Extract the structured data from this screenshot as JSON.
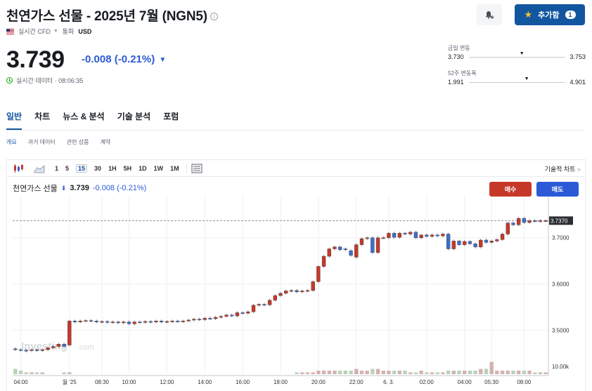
{
  "header": {
    "title": "천연가스 선물 - 2025년 7월 (NGN5)",
    "info_icon": "info-icon",
    "data_type": "실시간 CFD",
    "currency_label": "통화",
    "currency": "USD",
    "add_button_label": "추가함",
    "add_button_count": "1"
  },
  "quote": {
    "price": "3.739",
    "change": "-0.008",
    "change_pct": "(-0.21%)",
    "realtime_text": "실시간 데이터 · 08:06:35",
    "colors": {
      "down": "#2c5ad7",
      "up": "#c7382a",
      "brand": "#1256a0"
    }
  },
  "ranges": {
    "day": {
      "label": "금일 변동",
      "low": "3.730",
      "high": "3.753",
      "marker": 0.55
    },
    "week52": {
      "label": "52주 변동폭",
      "low": "1.991",
      "high": "4.901",
      "marker": 0.6
    }
  },
  "tabs": [
    {
      "label": "일반",
      "active": true
    },
    {
      "label": "차트"
    },
    {
      "label": "뉴스 & 분석"
    },
    {
      "label": "기술 분석"
    },
    {
      "label": "포럼"
    }
  ],
  "subtabs": [
    {
      "label": "개요",
      "active": true
    },
    {
      "label": "과거 데이터"
    },
    {
      "label": "관련 상품"
    },
    {
      "label": "계약"
    }
  ],
  "toolbar": {
    "timeframes": [
      "1",
      "5",
      "15",
      "30",
      "1H",
      "5H",
      "1D",
      "1W",
      "1M"
    ],
    "selected": "15",
    "tech_chart_link": "기술적 차트",
    "tech_chart_arrow": "»"
  },
  "chart_header": {
    "name": "천연가스 선물",
    "price": "3.739",
    "change": "-0.008 (-0.21%)",
    "buy_label": "매수",
    "sell_label": "매도"
  },
  "watermark": {
    "brand": "Investing",
    "suffix": ".com"
  },
  "chart_data": {
    "type": "candlestick",
    "y_ticks": [
      "3.7000",
      "3.6000",
      "3.5000"
    ],
    "y_tick_values": [
      3.7,
      3.6,
      3.5
    ],
    "ylim": [
      3.44,
      3.78
    ],
    "current_price_label": "3.7370",
    "current_price": 3.737,
    "volume_label": "10.00k",
    "x_ticks": [
      "04:00",
      "월 '25",
      "08:30",
      "10:00",
      "12:00",
      "14:00",
      "16:00",
      "18:00",
      "20:00",
      "22:00",
      "6. 3.",
      "02:00",
      "04:00",
      "05:30",
      "08:00"
    ],
    "x_tick_positions": [
      1,
      10,
      16,
      21,
      28,
      35,
      42,
      49,
      56,
      63,
      69,
      76,
      83,
      88,
      94
    ],
    "candles": [
      [
        3.46,
        3.458
      ],
      [
        3.458,
        3.457
      ],
      [
        3.457,
        3.455
      ],
      [
        3.456,
        3.458
      ],
      [
        3.458,
        3.456
      ],
      [
        3.456,
        3.458
      ],
      [
        3.458,
        3.462
      ],
      [
        3.462,
        3.465
      ],
      [
        3.465,
        3.47
      ],
      [
        3.47,
        3.465
      ],
      [
        3.468,
        3.52
      ],
      [
        3.52,
        3.518
      ],
      [
        3.518,
        3.52
      ],
      [
        3.52,
        3.521
      ],
      [
        3.521,
        3.52
      ],
      [
        3.52,
        3.518
      ],
      [
        3.518,
        3.519
      ],
      [
        3.519,
        3.517
      ],
      [
        3.517,
        3.518
      ],
      [
        3.518,
        3.516
      ],
      [
        3.516,
        3.518
      ],
      [
        3.518,
        3.514
      ],
      [
        3.514,
        3.518
      ],
      [
        3.518,
        3.517
      ],
      [
        3.517,
        3.519
      ],
      [
        3.519,
        3.518
      ],
      [
        3.518,
        3.52
      ],
      [
        3.52,
        3.518
      ],
      [
        3.518,
        3.519
      ],
      [
        3.519,
        3.52
      ],
      [
        3.52,
        3.519
      ],
      [
        3.519,
        3.52
      ],
      [
        3.52,
        3.522
      ],
      [
        3.522,
        3.524
      ],
      [
        3.524,
        3.523
      ],
      [
        3.523,
        3.526
      ],
      [
        3.526,
        3.525
      ],
      [
        3.525,
        3.528
      ],
      [
        3.528,
        3.53
      ],
      [
        3.53,
        3.533
      ],
      [
        3.533,
        3.531
      ],
      [
        3.531,
        3.538
      ],
      [
        3.538,
        3.537
      ],
      [
        3.537,
        3.54
      ],
      [
        3.54,
        3.554
      ],
      [
        3.554,
        3.556
      ],
      [
        3.556,
        3.555
      ],
      [
        3.555,
        3.565
      ],
      [
        3.565,
        3.575
      ],
      [
        3.575,
        3.58
      ],
      [
        3.58,
        3.585
      ],
      [
        3.585,
        3.586
      ],
      [
        3.586,
        3.583
      ],
      [
        3.583,
        3.585
      ],
      [
        3.585,
        3.586
      ],
      [
        3.586,
        3.605
      ],
      [
        3.605,
        3.638
      ],
      [
        3.638,
        3.66
      ],
      [
        3.66,
        3.676
      ],
      [
        3.676,
        3.68
      ],
      [
        3.68,
        3.674
      ],
      [
        3.676,
        3.674
      ],
      [
        3.672,
        3.662
      ],
      [
        3.658,
        3.685
      ],
      [
        3.685,
        3.698
      ],
      [
        3.698,
        3.7
      ],
      [
        3.7,
        3.668
      ],
      [
        3.668,
        3.7
      ],
      [
        3.7,
        3.7
      ],
      [
        3.7,
        3.71
      ],
      [
        3.71,
        3.701
      ],
      [
        3.701,
        3.71
      ],
      [
        3.71,
        3.708
      ],
      [
        3.708,
        3.712
      ],
      [
        3.712,
        3.7
      ],
      [
        3.7,
        3.706
      ],
      [
        3.706,
        3.703
      ],
      [
        3.703,
        3.706
      ],
      [
        3.706,
        3.704
      ],
      [
        3.704,
        3.708
      ],
      [
        3.708,
        3.676
      ],
      [
        3.676,
        3.693
      ],
      [
        3.693,
        3.685
      ],
      [
        3.685,
        3.692
      ],
      [
        3.692,
        3.687
      ],
      [
        3.687,
        3.68
      ],
      [
        3.68,
        3.695
      ],
      [
        3.695,
        3.69
      ],
      [
        3.69,
        3.693
      ],
      [
        3.693,
        3.696
      ],
      [
        3.696,
        3.708
      ],
      [
        3.708,
        3.732
      ],
      [
        3.732,
        3.728
      ],
      [
        3.728,
        3.742
      ],
      [
        3.742,
        3.733
      ],
      [
        3.733,
        3.737
      ],
      [
        3.737,
        3.736
      ],
      [
        3.736,
        3.737
      ],
      [
        3.737,
        3.737
      ]
    ],
    "volumes": [
      3,
      2,
      1,
      1,
      1,
      1,
      0,
      0,
      0,
      1,
      1,
      0,
      0,
      0,
      0,
      0,
      0,
      0,
      0,
      0,
      0,
      0,
      0,
      0,
      0,
      0,
      0,
      0,
      0,
      0,
      0,
      0,
      0,
      0,
      0,
      0,
      0,
      0,
      0,
      0,
      0,
      0,
      0,
      0,
      0,
      0,
      0,
      0,
      0,
      0,
      0,
      0,
      1,
      1,
      1,
      1,
      2,
      2,
      2,
      2,
      2,
      2,
      2,
      3,
      2,
      2,
      3,
      3,
      2,
      2,
      2,
      2,
      2,
      1,
      1,
      2,
      1,
      1,
      1,
      1,
      2,
      2,
      2,
      2,
      2,
      2,
      3,
      3,
      7,
      2,
      2,
      2,
      2,
      2,
      2,
      2,
      1,
      1,
      1
    ],
    "grid": true
  }
}
